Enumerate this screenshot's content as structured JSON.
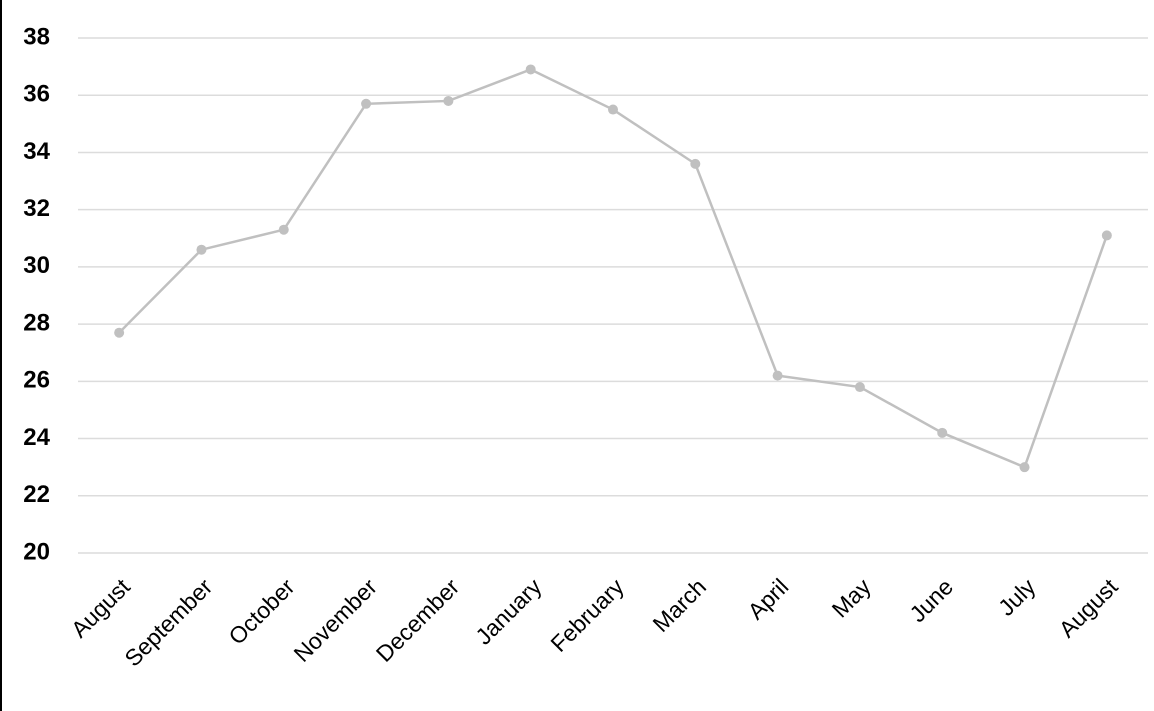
{
  "chart_data": {
    "type": "line",
    "categories": [
      "August",
      "September",
      "October",
      "November",
      "December",
      "January",
      "February",
      "March",
      "April",
      "May",
      "June",
      "July",
      "August"
    ],
    "series": [
      {
        "name": null,
        "color": "#c0c0c0",
        "values": [
          27.7,
          30.6,
          31.3,
          35.7,
          35.8,
          36.9,
          35.5,
          33.6,
          26.2,
          25.8,
          24.2,
          23.0,
          31.1
        ]
      }
    ],
    "ylim": [
      20,
      38
    ],
    "yticks": [
      20,
      22,
      24,
      26,
      28,
      30,
      32,
      34,
      36,
      38
    ],
    "grid": true
  }
}
